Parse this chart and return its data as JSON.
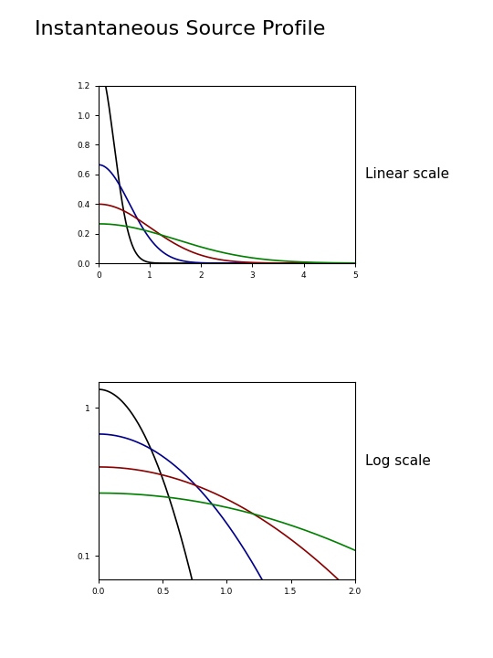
{
  "title": "Instantaneous Source Profile",
  "title_fontsize": 16,
  "label_linear": "Linear scale",
  "label_log": "Log scale",
  "label_fontsize": 11,
  "background_color": "#ffffff",
  "curves": [
    {
      "sigma": 0.3,
      "color": "#000000",
      "lw": 1.2
    },
    {
      "sigma": 0.6,
      "color": "#00008B",
      "lw": 1.2
    },
    {
      "sigma": 1.0,
      "color": "#8B0000",
      "lw": 1.2
    },
    {
      "sigma": 1.5,
      "color": "#008000",
      "lw": 1.2
    }
  ],
  "linear_xlim": [
    0,
    5
  ],
  "linear_ylim": [
    0,
    1.2
  ],
  "linear_xticks": [
    0,
    1,
    2,
    3,
    4,
    5
  ],
  "linear_yticks": [
    0,
    0.2,
    0.4,
    0.6,
    0.8,
    1.0,
    1.2
  ],
  "log_xlim": [
    0,
    2
  ],
  "log_ylim_min": 0.07,
  "log_ylim_max": 1.5,
  "log_xticks": [
    0,
    0.5,
    1.0,
    1.5,
    2.0
  ]
}
